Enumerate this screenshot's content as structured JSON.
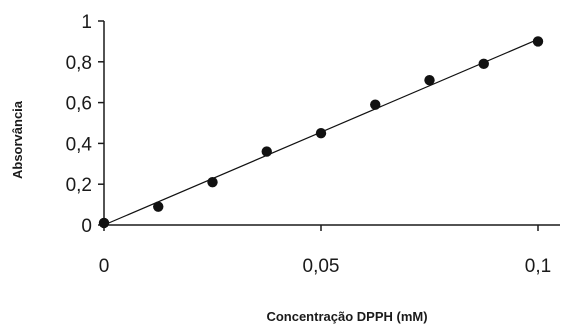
{
  "chart_data": {
    "type": "scatter",
    "title": "",
    "xlabel": "Concentração DPPH (mM)",
    "ylabel": "Absorvância",
    "xlim": [
      0,
      0.1
    ],
    "ylim": [
      0,
      1
    ],
    "x_ticks": [
      {
        "value": 0,
        "label": "0"
      },
      {
        "value": 0.05,
        "label": "0,05"
      },
      {
        "value": 0.1,
        "label": "0,1"
      }
    ],
    "y_ticks": [
      {
        "value": 0,
        "label": "0"
      },
      {
        "value": 0.2,
        "label": "0,2"
      },
      {
        "value": 0.4,
        "label": "0,4"
      },
      {
        "value": 0.6,
        "label": "0,6"
      },
      {
        "value": 0.8,
        "label": "0,8"
      },
      {
        "value": 1,
        "label": "1"
      }
    ],
    "grid": false,
    "legend": "none",
    "series": [
      {
        "x": [
          0,
          0.0125,
          0.025,
          0.0375,
          0.05,
          0.0625,
          0.075,
          0.0875,
          0.1
        ],
        "y": [
          0.01,
          0.09,
          0.21,
          0.36,
          0.45,
          0.59,
          0.71,
          0.79,
          0.9
        ],
        "marker_color": "#111111"
      }
    ],
    "trendline": {
      "type": "linear",
      "x": [
        0,
        0.1
      ],
      "y": [
        0,
        0.91
      ],
      "color": "#111111"
    }
  }
}
